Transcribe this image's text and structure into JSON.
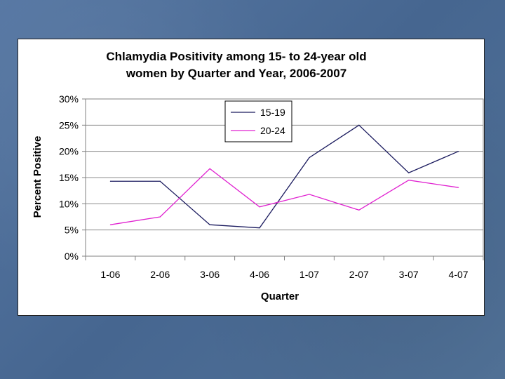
{
  "chart_data": {
    "type": "line",
    "title_lines": [
      "Chlamydia Positivity among 15- to 24-year old",
      "women by Quarter and Year, 2006-2007"
    ],
    "xlabel": "Quarter",
    "ylabel": "Percent Positive",
    "categories": [
      "1-06",
      "2-06",
      "3-06",
      "4-06",
      "1-07",
      "2-07",
      "3-07",
      "4-07"
    ],
    "ylim": [
      0,
      30
    ],
    "yticks": [
      0,
      5,
      10,
      15,
      20,
      25,
      30
    ],
    "ytick_labels": [
      "0%",
      "5%",
      "10%",
      "15%",
      "20%",
      "25%",
      "30%"
    ],
    "grid": true,
    "legend_position": "top-center",
    "series": [
      {
        "name": "15-19",
        "color": "#1a1a5e",
        "values": [
          14.3,
          14.3,
          6.0,
          5.4,
          18.8,
          25.0,
          15.9,
          20.0
        ]
      },
      {
        "name": "20-24",
        "color": "#e020d0",
        "values": [
          6.0,
          7.5,
          16.7,
          9.4,
          11.8,
          8.8,
          14.5,
          13.1
        ]
      }
    ]
  }
}
